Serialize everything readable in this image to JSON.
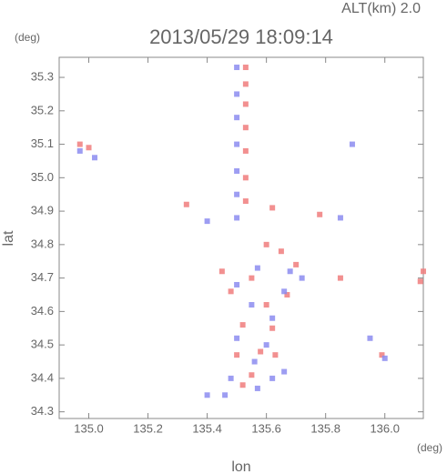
{
  "chart_data": {
    "type": "scatter",
    "title": "2013/05/29 18:09:14",
    "subtitle": "ALT(km) 2.0",
    "y_unit": "(deg)",
    "x_unit": "(deg)",
    "x_label": "lon",
    "y_label": "lat",
    "xlim": [
      134.9,
      136.13
    ],
    "ylim": [
      34.28,
      35.36
    ],
    "xticks": [
      {
        "value": 135,
        "label": "135.0"
      },
      135.2,
      135.4,
      135.6,
      135.8,
      {
        "value": 136,
        "label": "136.0"
      }
    ],
    "yticks": [
      34.3,
      34.4,
      34.5,
      34.6,
      34.7,
      34.8,
      34.9,
      {
        "value": 35,
        "label": "35.0"
      },
      35.1,
      35.2,
      35.3
    ],
    "series": [
      {
        "color": "#f07c7c",
        "x": [
          135.53,
          135.53,
          135.53,
          135.53,
          135.53,
          135.53,
          135.53,
          134.97,
          135.0,
          135.33,
          135.62,
          135.78,
          135.6,
          135.65,
          135.55,
          135.48,
          135.6,
          135.67,
          135.52,
          135.58,
          135.63,
          135.5,
          135.55,
          135.52,
          135.45,
          136.12,
          136.13,
          135.99,
          135.85,
          135.7,
          135.62
        ],
        "y": [
          35.33,
          35.28,
          35.22,
          35.15,
          35.08,
          35.0,
          34.93,
          35.1,
          35.09,
          34.92,
          34.91,
          34.89,
          34.8,
          34.78,
          34.7,
          34.66,
          34.62,
          34.65,
          34.56,
          34.48,
          34.47,
          34.47,
          34.41,
          34.38,
          34.72,
          34.69,
          34.72,
          34.47,
          34.7,
          34.74,
          34.55
        ]
      },
      {
        "color": "#8c8cf0",
        "x": [
          135.5,
          135.5,
          135.5,
          135.5,
          135.5,
          135.5,
          135.5,
          134.97,
          135.02,
          135.89,
          135.4,
          135.68,
          135.72,
          135.5,
          135.57,
          135.55,
          135.62,
          135.5,
          135.56,
          135.6,
          135.66,
          135.48,
          135.62,
          135.57,
          135.46,
          135.4,
          136.0,
          135.85,
          135.95,
          135.66
        ],
        "y": [
          35.33,
          35.25,
          35.18,
          35.1,
          35.02,
          34.95,
          34.88,
          35.08,
          35.06,
          35.1,
          34.87,
          34.72,
          34.7,
          34.68,
          34.73,
          34.62,
          34.58,
          34.52,
          34.45,
          34.5,
          34.42,
          34.4,
          34.4,
          34.37,
          34.35,
          34.35,
          34.46,
          34.88,
          34.52,
          34.66
        ]
      }
    ]
  }
}
